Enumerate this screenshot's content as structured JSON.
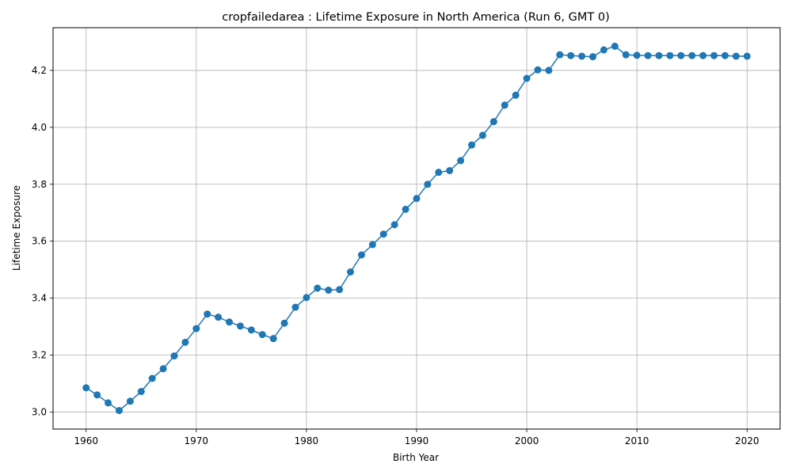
{
  "chart_data": {
    "type": "line",
    "title": "cropfailedarea : Lifetime Exposure in North America (Run 6, GMT 0)",
    "xlabel": "Birth Year",
    "ylabel": "Lifetime Exposure",
    "xlim": [
      1957,
      2023
    ],
    "ylim": [
      2.94,
      4.35
    ],
    "xticks": [
      1960,
      1970,
      1980,
      1990,
      2000,
      2010,
      2020
    ],
    "yticks": [
      3.0,
      3.2,
      3.4,
      3.6,
      3.8,
      4.0,
      4.2
    ],
    "ytick_labels": [
      "3.0",
      "3.2",
      "3.4",
      "3.6",
      "3.8",
      "4.0",
      "4.2"
    ],
    "grid": true,
    "line_color": "#1f77b4",
    "x": [
      1960,
      1961,
      1962,
      1963,
      1964,
      1965,
      1966,
      1967,
      1968,
      1969,
      1970,
      1971,
      1972,
      1973,
      1974,
      1975,
      1976,
      1977,
      1978,
      1979,
      1980,
      1981,
      1982,
      1983,
      1984,
      1985,
      1986,
      1987,
      1988,
      1989,
      1990,
      1991,
      1992,
      1993,
      1994,
      1995,
      1996,
      1997,
      1998,
      1999,
      2000,
      2001,
      2002,
      2003,
      2004,
      2005,
      2006,
      2007,
      2008,
      2009,
      2010,
      2011,
      2012,
      2013,
      2014,
      2015,
      2016,
      2017,
      2018,
      2019,
      2020
    ],
    "y": [
      3.085,
      3.06,
      3.032,
      3.005,
      3.038,
      3.072,
      3.118,
      3.152,
      3.197,
      3.245,
      3.293,
      3.344,
      3.333,
      3.316,
      3.302,
      3.288,
      3.272,
      3.258,
      3.312,
      3.368,
      3.402,
      3.435,
      3.428,
      3.43,
      3.492,
      3.552,
      3.588,
      3.625,
      3.658,
      3.712,
      3.75,
      3.8,
      3.842,
      3.848,
      3.883,
      3.938,
      3.972,
      4.02,
      4.078,
      4.113,
      4.172,
      4.202,
      4.2,
      4.255,
      4.252,
      4.25,
      4.248,
      4.272,
      4.285,
      4.255,
      4.253,
      4.252,
      4.252,
      4.252,
      4.252,
      4.252,
      4.252,
      4.252,
      4.252,
      4.25,
      4.25
    ]
  }
}
